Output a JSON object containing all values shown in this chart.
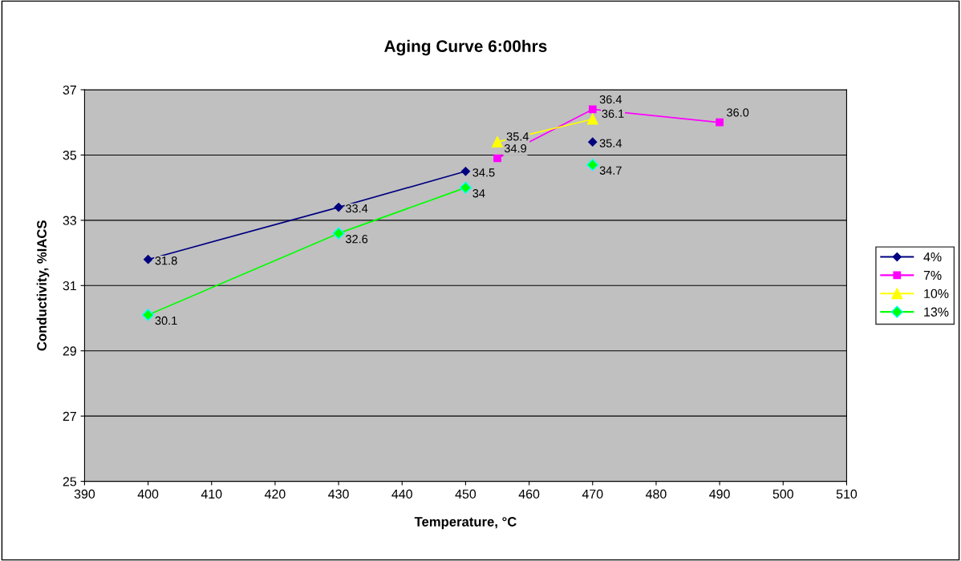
{
  "chart_data": {
    "type": "line",
    "title": "Aging Curve 6:00hrs",
    "xlabel": "Temperature, °C",
    "ylabel": "Conductivity, %IACS",
    "xlim": [
      390,
      510
    ],
    "xticks": [
      390,
      400,
      410,
      420,
      430,
      440,
      450,
      460,
      470,
      480,
      490,
      500,
      510
    ],
    "ylim": [
      25,
      37
    ],
    "yticks": [
      25,
      27,
      29,
      31,
      33,
      35,
      37
    ],
    "grid": "y",
    "legend": "right",
    "series": [
      {
        "name": "4%",
        "color": "#000080",
        "marker": "diamond",
        "x": [
          400,
          430,
          450,
          460,
          470
        ],
        "values": [
          31.8,
          33.4,
          34.5,
          null,
          35.4
        ],
        "value_labels": [
          "31.8",
          "33.4",
          "34.5",
          null,
          "35.4"
        ]
      },
      {
        "name": "7%",
        "color": "#ff00ff",
        "marker": "square",
        "x": [
          455,
          470,
          490
        ],
        "values": [
          34.9,
          36.4,
          36.0
        ],
        "value_labels": [
          "34.9",
          "36.4",
          "36.0"
        ]
      },
      {
        "name": "10%",
        "color": "#ffff00",
        "marker": "triangle",
        "x": [
          455,
          470
        ],
        "values": [
          35.4,
          36.1
        ],
        "value_labels": [
          "35.4",
          "36.1"
        ]
      },
      {
        "name": "13%",
        "color": "#00ff00",
        "marker": "diamond",
        "x": [
          400,
          430,
          450,
          460,
          470
        ],
        "values": [
          30.1,
          32.6,
          34.0,
          null,
          34.7
        ],
        "value_labels": [
          "30.1",
          "32.6",
          "34",
          null,
          "34.7"
        ]
      }
    ]
  }
}
